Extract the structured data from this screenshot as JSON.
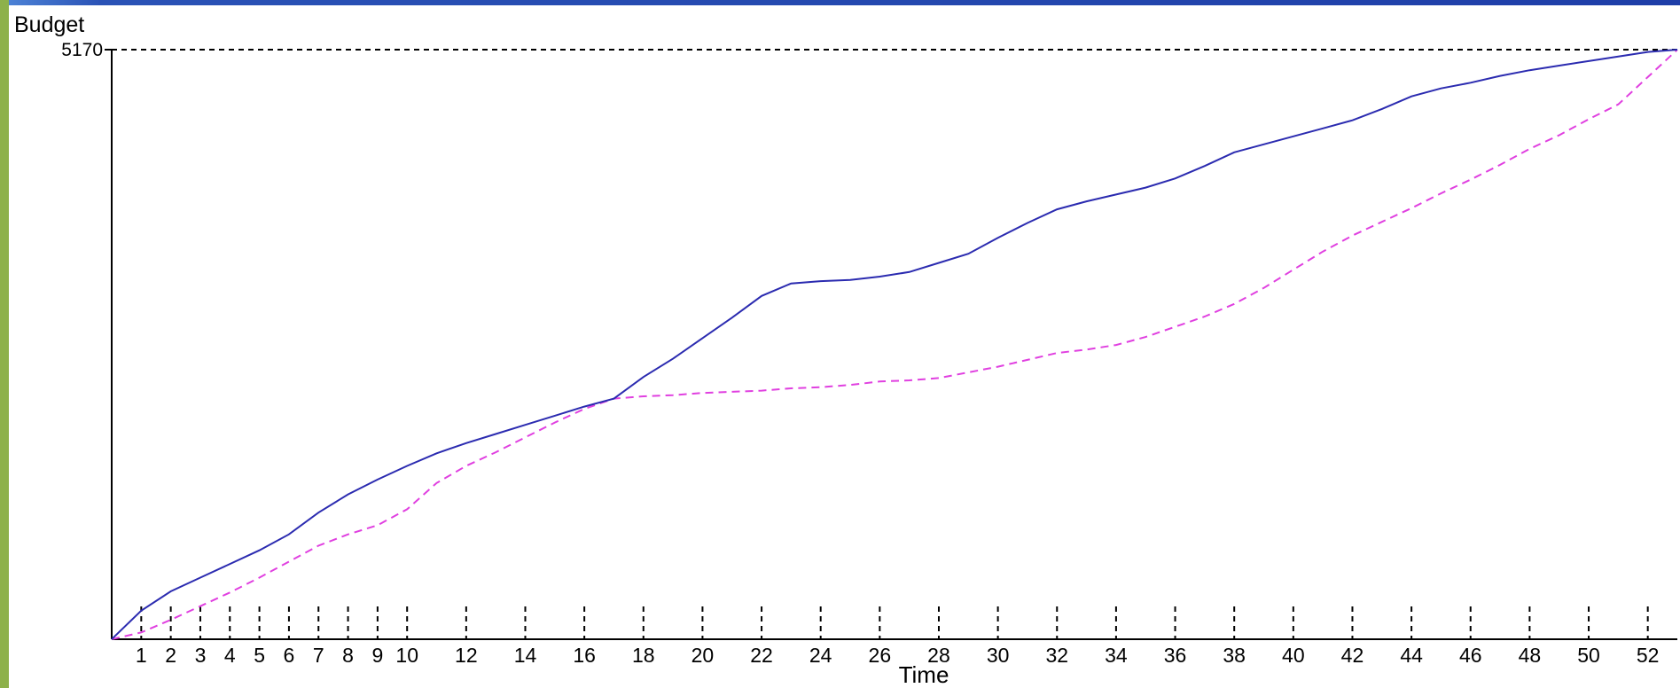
{
  "chart_data": {
    "type": "line",
    "ylabel": "Budget",
    "xlabel": "Time",
    "ylim": [
      0,
      5170
    ],
    "y_tick_labels": [
      "5170"
    ],
    "xlim": [
      0,
      53
    ],
    "x_tick_labels": [
      "1",
      "2",
      "3",
      "4",
      "5",
      "6",
      "7",
      "8",
      "9",
      "10",
      "12",
      "14",
      "16",
      "18",
      "20",
      "22",
      "24",
      "26",
      "28",
      "30",
      "32",
      "34",
      "36",
      "38",
      "40",
      "42",
      "44",
      "46",
      "48",
      "50",
      "52"
    ],
    "grid": "none",
    "series": [
      {
        "style": "solid",
        "color": "#2b2bb0",
        "x": [
          0,
          1,
          2,
          3,
          4,
          5,
          6,
          7,
          8,
          9,
          10,
          11,
          12,
          13,
          14,
          15,
          16,
          17,
          18,
          19,
          20,
          21,
          22,
          23,
          24,
          25,
          26,
          27,
          28,
          29,
          30,
          31,
          32,
          33,
          34,
          35,
          36,
          37,
          38,
          39,
          40,
          41,
          42,
          43,
          44,
          45,
          46,
          47,
          48,
          49,
          50,
          51,
          52,
          53
        ],
        "values": [
          0,
          250,
          420,
          540,
          660,
          780,
          920,
          1110,
          1270,
          1400,
          1520,
          1630,
          1720,
          1800,
          1880,
          1960,
          2040,
          2110,
          2300,
          2460,
          2640,
          2820,
          3010,
          3120,
          3140,
          3150,
          3180,
          3220,
          3300,
          3380,
          3520,
          3650,
          3770,
          3840,
          3900,
          3960,
          4040,
          4150,
          4270,
          4340,
          4410,
          4480,
          4550,
          4650,
          4760,
          4830,
          4880,
          4940,
          4990,
          5030,
          5070,
          5110,
          5150,
          5170
        ]
      },
      {
        "style": "dashed",
        "color": "#e040e0",
        "x": [
          0,
          1,
          2,
          3,
          4,
          5,
          6,
          7,
          8,
          9,
          10,
          11,
          12,
          13,
          14,
          15,
          16,
          17,
          18,
          19,
          20,
          21,
          22,
          23,
          24,
          25,
          26,
          27,
          28,
          29,
          30,
          31,
          32,
          33,
          34,
          35,
          36,
          37,
          38,
          39,
          40,
          41,
          42,
          43,
          44,
          45,
          46,
          47,
          48,
          49,
          50,
          51,
          52,
          53
        ],
        "values": [
          0,
          60,
          170,
          290,
          410,
          540,
          680,
          820,
          920,
          1000,
          1140,
          1370,
          1520,
          1640,
          1770,
          1900,
          2020,
          2110,
          2130,
          2140,
          2160,
          2170,
          2180,
          2200,
          2210,
          2230,
          2260,
          2270,
          2290,
          2340,
          2390,
          2450,
          2510,
          2540,
          2580,
          2650,
          2740,
          2830,
          2940,
          3080,
          3240,
          3400,
          3540,
          3660,
          3780,
          3910,
          4030,
          4160,
          4300,
          4420,
          4560,
          4690,
          4930,
          5170
        ]
      }
    ]
  }
}
